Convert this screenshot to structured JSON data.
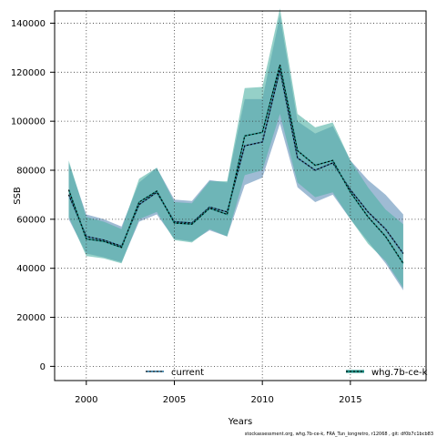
{
  "chart_data": {
    "type": "line",
    "title": "",
    "xlabel": "Years",
    "ylabel": "SSB",
    "xlim": [
      1998.2,
      2019.3
    ],
    "ylim": [
      -5800,
      145000
    ],
    "x_ticks": [
      2000,
      2005,
      2010,
      2015
    ],
    "y_ticks": [
      0,
      20000,
      40000,
      60000,
      80000,
      100000,
      120000,
      140000
    ],
    "grid": true,
    "legend_placement": "bottom",
    "x": [
      1999,
      2000,
      2001,
      2002,
      2003,
      2004,
      2005,
      2006,
      2007,
      2008,
      2009,
      2010,
      2011,
      2012,
      2013,
      2014,
      2015,
      2016,
      2017,
      2018
    ],
    "series": [
      {
        "name": "current",
        "color": "#3a6f9a",
        "band_color": "#7fa4c6",
        "values": [
          70000,
          53000,
          51500,
          49000,
          66000,
          71000,
          59000,
          58500,
          65000,
          63000,
          90000,
          91500,
          121000,
          85000,
          80000,
          83000,
          72000,
          63000,
          56000,
          46000
        ],
        "lower": [
          60000,
          46000,
          44500,
          42500,
          59000,
          62000,
          52000,
          51000,
          55500,
          53000,
          74000,
          77000,
          99000,
          73000,
          67000,
          70000,
          60000,
          51000,
          42000,
          31000
        ],
        "upper": [
          83000,
          62000,
          60000,
          57000,
          75000,
          81000,
          68000,
          67500,
          76000,
          75000,
          109000,
          109000,
          143000,
          100000,
          95000,
          98000,
          84000,
          76000,
          70000,
          62000
        ]
      },
      {
        "name": "whg.7b-ce-k",
        "color": "#1a8a7f",
        "band_color": "#4fb0a3",
        "values": [
          72000,
          52000,
          51000,
          48500,
          67000,
          71500,
          58500,
          58000,
          64500,
          62000,
          94000,
          95500,
          123000,
          88000,
          82000,
          84000,
          71000,
          61000,
          53000,
          42000
        ],
        "lower": [
          61000,
          45000,
          44000,
          42000,
          60000,
          63000,
          51500,
          50500,
          56000,
          53000,
          78000,
          80000,
          103000,
          75000,
          69000,
          71000,
          60000,
          50000,
          43000,
          32000
        ],
        "upper": [
          84000,
          61000,
          59000,
          56000,
          76500,
          81000,
          67000,
          66500,
          75500,
          75500,
          113500,
          114000,
          146000,
          103000,
          97500,
          99500,
          84000,
          73000,
          64000,
          58000
        ]
      }
    ]
  },
  "legend": {
    "current_label": "current",
    "assessment_label": "whg.7b-ce-k"
  },
  "footer": "stockassessment.org, whg.7b-ce-k, FRA_Tun_longretro, r12068 , git: df0b7c1bcb83"
}
